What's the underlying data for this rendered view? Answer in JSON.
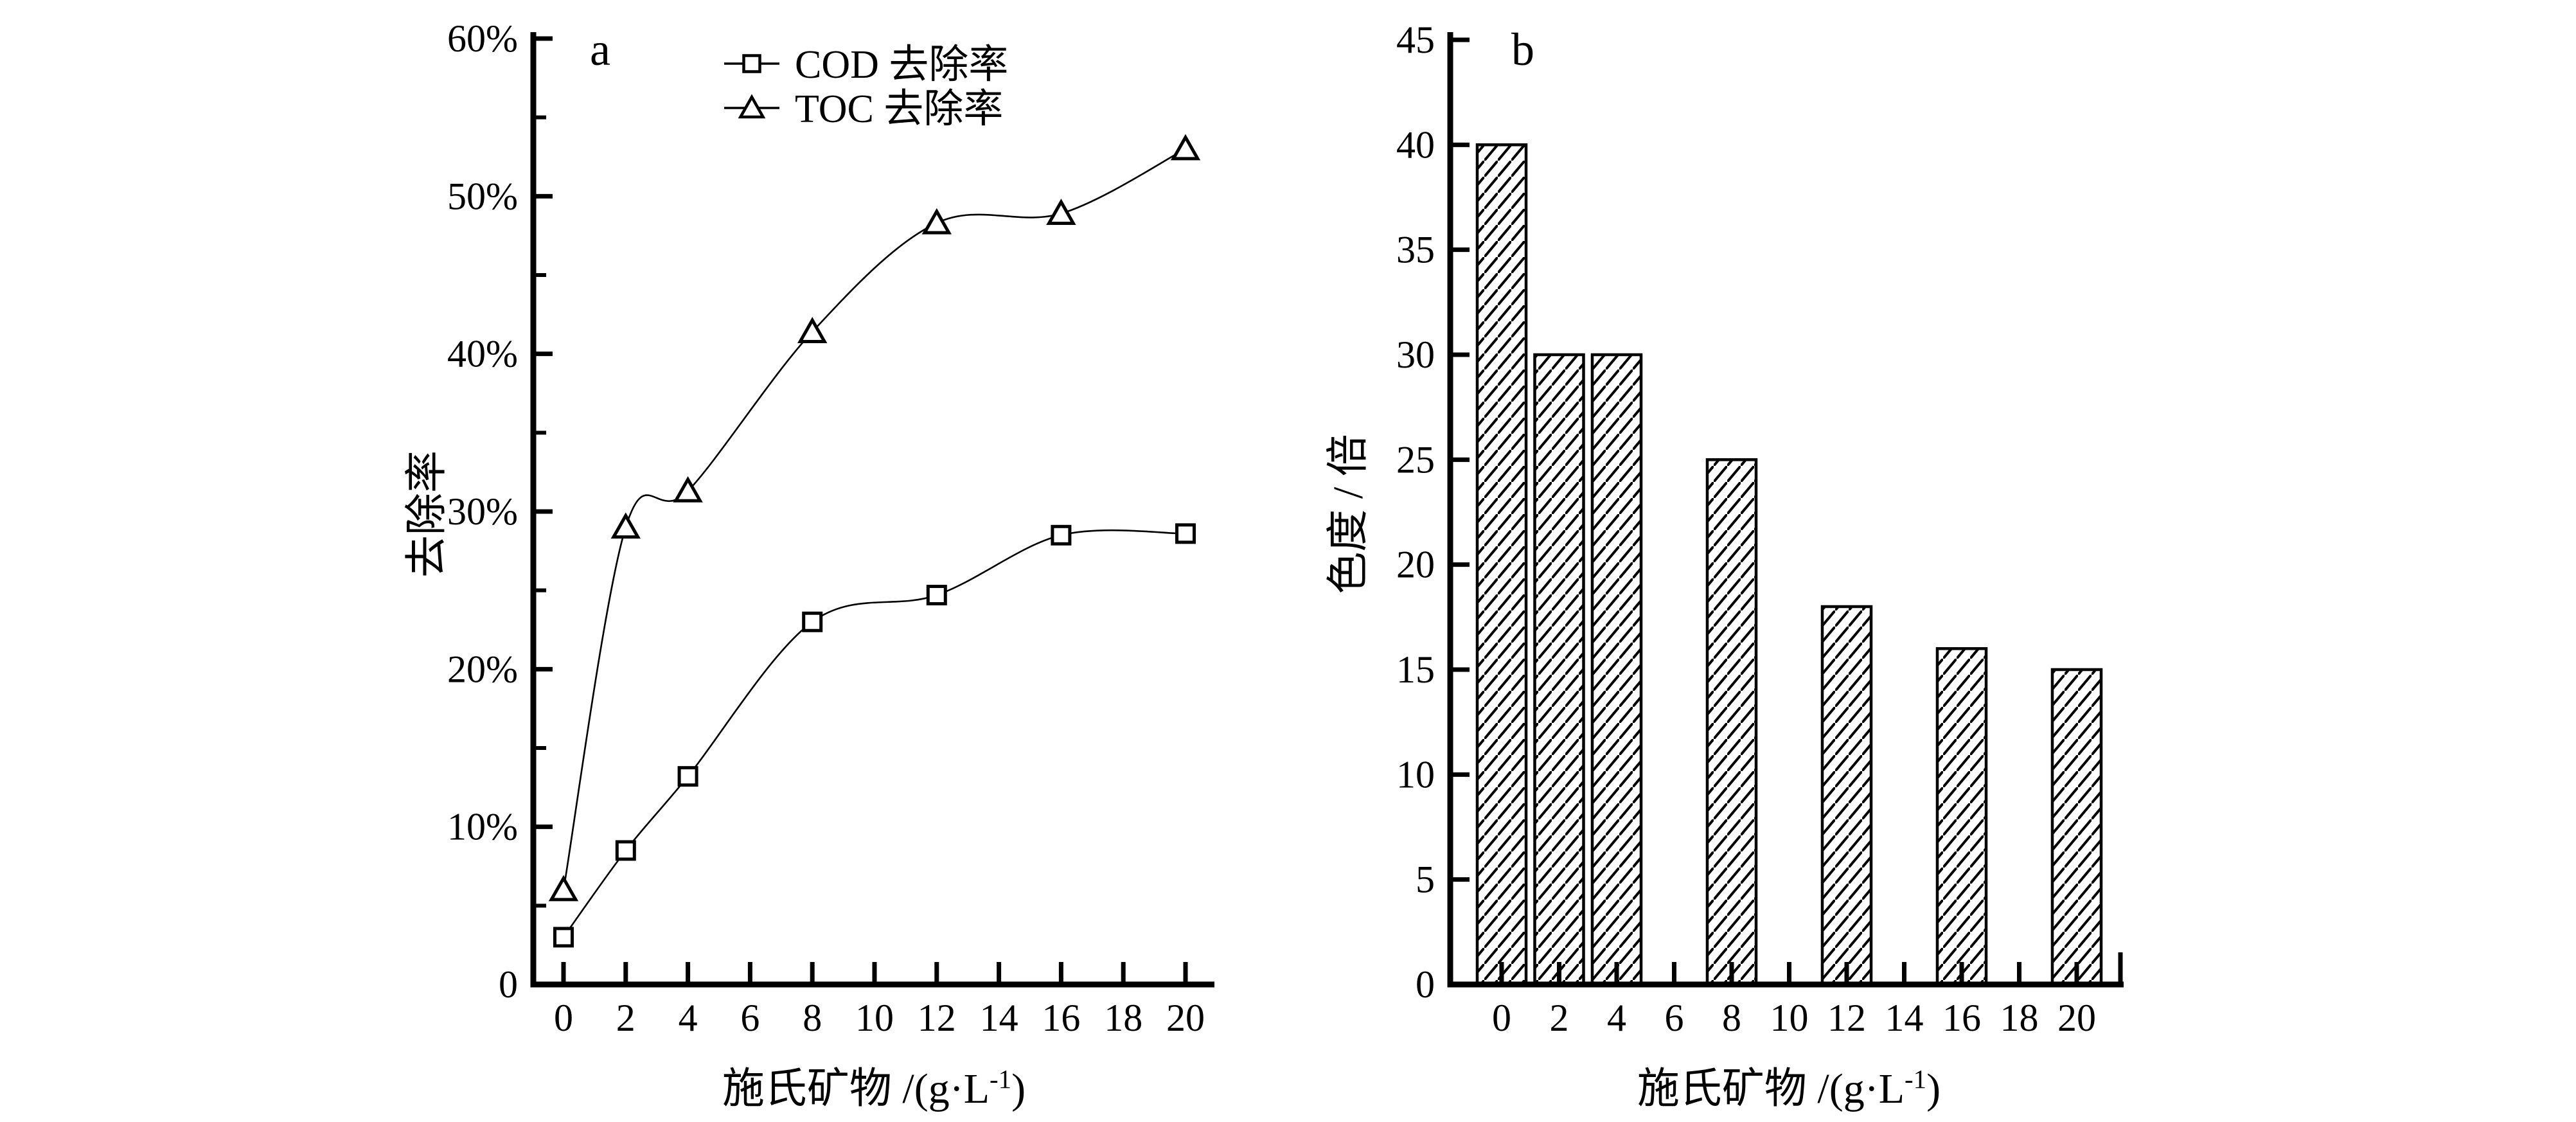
{
  "page": {
    "background": "#ffffff",
    "ink": "#000000"
  },
  "chart_data": [
    {
      "id": "a",
      "type": "line",
      "panel_label": "a",
      "title": "",
      "xlabel_full": "施氏矿物 /(g·L⁻¹)",
      "xlabel_main": "施氏矿物 /(g·L",
      "xlabel_sup": "-1",
      "xlabel_close": ")",
      "ylabel": "去除率",
      "xlim": [
        0,
        20
      ],
      "ylim_percent": [
        0,
        60
      ],
      "grid": "off",
      "legend_position": "top-inside",
      "x_ticks": [
        0,
        2,
        4,
        6,
        8,
        10,
        12,
        14,
        16,
        18,
        20
      ],
      "y_major_ticks": [
        {
          "v": 0,
          "label": "0"
        },
        {
          "v": 10,
          "label": "10%"
        },
        {
          "v": 20,
          "label": "20%"
        },
        {
          "v": 30,
          "label": "30%"
        },
        {
          "v": 40,
          "label": "40%"
        },
        {
          "v": 50,
          "label": "50%"
        },
        {
          "v": 60,
          "label": "60%"
        }
      ],
      "y_minor_ticks": [
        5,
        15,
        25,
        35,
        45,
        55
      ],
      "series": [
        {
          "name": "COD 去除率",
          "marker": "square",
          "line_style": "smooth",
          "x": [
            0,
            2,
            4,
            8,
            12,
            16,
            20
          ],
          "y_percent": [
            3,
            8.5,
            13.2,
            23,
            24.7,
            28.5,
            28.6
          ]
        },
        {
          "name": "TOC 去除率",
          "marker": "triangle",
          "line_style": "smooth",
          "x": [
            0,
            2,
            4,
            8,
            12,
            16,
            20
          ],
          "y_percent": [
            6,
            29,
            31.3,
            41.4,
            48.3,
            48.9,
            53
          ]
        }
      ]
    },
    {
      "id": "b",
      "type": "bar",
      "panel_label": "b",
      "title": "",
      "xlabel_full": "施氏矿物 /(g·L⁻¹)",
      "xlabel_main": "施氏矿物 /(g·L",
      "xlabel_sup": "-1",
      "xlabel_close": ")",
      "ylabel": "色度 / 倍",
      "xlim": [
        0,
        20
      ],
      "ylim": [
        0,
        45
      ],
      "grid": "off",
      "x_ticks": [
        0,
        2,
        4,
        6,
        8,
        10,
        12,
        14,
        16,
        18,
        20
      ],
      "y_major_ticks": [
        {
          "v": 0,
          "label": "0"
        },
        {
          "v": 5,
          "label": "5"
        },
        {
          "v": 10,
          "label": "10"
        },
        {
          "v": 15,
          "label": "15"
        },
        {
          "v": 20,
          "label": "20"
        },
        {
          "v": 25,
          "label": "25"
        },
        {
          "v": 30,
          "label": "30"
        },
        {
          "v": 35,
          "label": "35"
        },
        {
          "v": 40,
          "label": "40"
        },
        {
          "v": 45,
          "label": "45"
        }
      ],
      "categories": [
        0,
        2,
        4,
        8,
        12,
        16,
        20
      ],
      "values": [
        40,
        30,
        30,
        25,
        18,
        16,
        15
      ],
      "bar_fill": "#ffffff",
      "bar_hatch": "diagonal-forward"
    }
  ]
}
